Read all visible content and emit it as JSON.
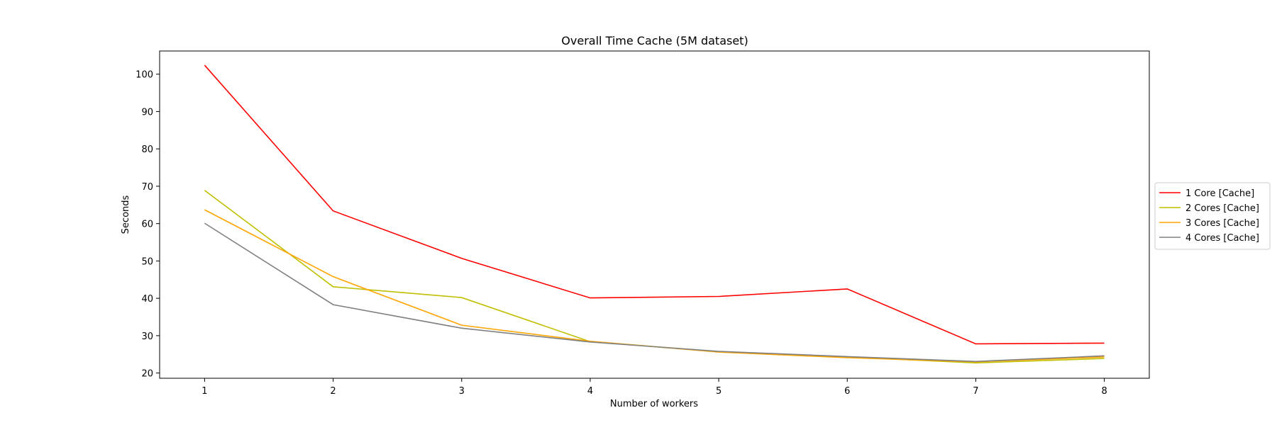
{
  "chart_data": {
    "type": "line",
    "title": "Overall Time Cache (5M dataset)",
    "xlabel": "Number of workers",
    "ylabel": "Seconds",
    "x": [
      1,
      2,
      3,
      4,
      5,
      6,
      7,
      8
    ],
    "xlim": [
      0.65,
      8.35
    ],
    "ylim": [
      18.6,
      106.2
    ],
    "xticks": [
      1,
      2,
      3,
      4,
      5,
      6,
      7,
      8
    ],
    "yticks": [
      20,
      30,
      40,
      50,
      60,
      70,
      80,
      90,
      100
    ],
    "grid": false,
    "legend_position": "center-right outside",
    "series": [
      {
        "name": "1 Core [Cache]",
        "color": "#ff0000",
        "values": [
          102.4,
          63.4,
          50.7,
          40.1,
          40.5,
          42.5,
          27.8,
          28.0
        ]
      },
      {
        "name": "2 Cores [Cache]",
        "color": "#bfbf00",
        "values": [
          68.9,
          43.1,
          40.2,
          28.4,
          25.7,
          24.3,
          22.7,
          23.9
        ]
      },
      {
        "name": "3 Cores [Cache]",
        "color": "#ffa500",
        "values": [
          63.7,
          45.8,
          32.8,
          28.5,
          25.6,
          24.1,
          23.0,
          24.3
        ]
      },
      {
        "name": "4 Cores [Cache]",
        "color": "#808080",
        "values": [
          60.1,
          38.3,
          32.0,
          28.3,
          25.8,
          24.4,
          23.1,
          24.6
        ]
      }
    ]
  }
}
